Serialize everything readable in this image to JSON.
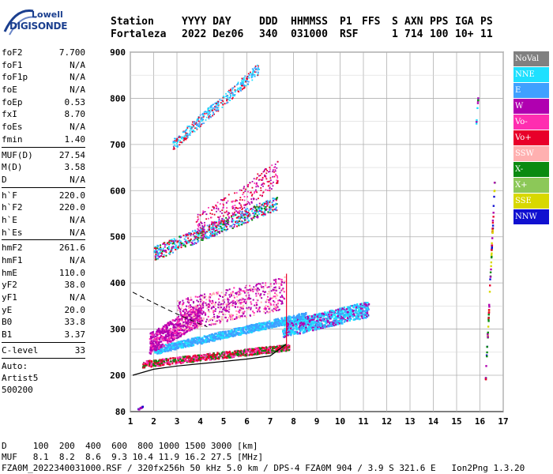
{
  "logo": {
    "line1": "Lowell",
    "line2": "DIGISONDE"
  },
  "header": {
    "labels": [
      "Station",
      "YYYY DAY",
      "DDD",
      "HHMMSS",
      "P1",
      "FFS",
      "S",
      "AXN",
      "PPS",
      "IGA",
      "PS"
    ],
    "values": [
      "Fortaleza",
      "2022 Dez06",
      "340",
      "031000",
      "RSF",
      "",
      "1",
      "714",
      "100",
      "10+",
      "11"
    ]
  },
  "params": {
    "group1": [
      {
        "name": "foF2",
        "value": "7.700"
      },
      {
        "name": "foF1",
        "value": "N/A"
      },
      {
        "name": "foF1p",
        "value": "N/A"
      },
      {
        "name": "foE",
        "value": "N/A"
      },
      {
        "name": "foEp",
        "value": "0.53"
      },
      {
        "name": "fxI",
        "value": "8.70"
      },
      {
        "name": "foEs",
        "value": "N/A"
      },
      {
        "name": "fmin",
        "value": "1.40"
      }
    ],
    "group2": [
      {
        "name": "MUF(D)",
        "value": "27.54"
      },
      {
        "name": "M(D)",
        "value": "3.58"
      },
      {
        "name": "D",
        "value": "N/A"
      }
    ],
    "group3": [
      {
        "name": "h`F",
        "value": "220.0"
      },
      {
        "name": "h`F2",
        "value": "220.0"
      },
      {
        "name": "h`E",
        "value": "N/A"
      },
      {
        "name": "h`Es",
        "value": "N/A"
      }
    ],
    "group4": [
      {
        "name": "hmF2",
        "value": "261.6"
      },
      {
        "name": "hmF1",
        "value": "N/A"
      },
      {
        "name": "hmE",
        "value": "110.0"
      },
      {
        "name": "yF2",
        "value": "38.0"
      },
      {
        "name": "yF1",
        "value": "N/A"
      },
      {
        "name": "yE",
        "value": "20.0"
      },
      {
        "name": "B0",
        "value": "33.8"
      },
      {
        "name": "B1",
        "value": "3.37"
      }
    ],
    "group5": [
      {
        "name": "C-level",
        "value": "33"
      }
    ],
    "auto": [
      "Auto:",
      "Artist5",
      "500200"
    ]
  },
  "axes": {
    "y_ticks": [
      "900",
      "800",
      "700",
      "600",
      "500",
      "400",
      "300",
      "200",
      "80"
    ],
    "x_ticks": [
      "1",
      "2",
      "3",
      "4",
      "5",
      "6",
      "7",
      "8",
      "9",
      "10",
      "11",
      "12",
      "13",
      "14",
      "15",
      "16",
      "17"
    ]
  },
  "legend": [
    {
      "label": "NoVal",
      "color": "#808080"
    },
    {
      "label": "NNE",
      "color": "#1ee0ff"
    },
    {
      "label": "E",
      "color": "#3fa0ff"
    },
    {
      "label": "W",
      "color": "#b000b0"
    },
    {
      "label": "Vo-",
      "color": "#ff2db0"
    },
    {
      "label": "Vo+",
      "color": "#e8002a"
    },
    {
      "label": "SSW",
      "color": "#ffb0b0"
    },
    {
      "label": "X-",
      "color": "#0a8a10"
    },
    {
      "label": "X+",
      "color": "#8cc858"
    },
    {
      "label": "SSE",
      "color": "#d8d800"
    },
    {
      "label": "NNW",
      "color": "#1010d0"
    }
  ],
  "footer": {
    "d_row": "D     100  200  400  600  800 1000 1500 3000 [km]",
    "muf_row": "MUF   8.1  8.2  8.6  9.3 10.4 11.9 16.2 27.5 [MHz]",
    "info_row": "FZA0M_2022340031000.RSF / 320fx256h 50 kHz 5.0 km / DPS-4 FZA0M 904 / 3.9 S 321.6 E   Ion2Png 1.3.20"
  },
  "chart_data": {
    "type": "scatter",
    "x_axis": {
      "label": "",
      "range": [
        1,
        17
      ],
      "ticks": [
        1,
        2,
        3,
        4,
        5,
        6,
        7,
        8,
        9,
        10,
        11,
        12,
        13,
        14,
        15,
        16,
        17
      ]
    },
    "y_axis": {
      "label": "",
      "range": [
        80,
        900
      ],
      "ticks": [
        80,
        200,
        300,
        400,
        500,
        600,
        700,
        800,
        900
      ]
    },
    "grid": true,
    "traces": [
      {
        "name": "E",
        "color": "#3fa0ff",
        "x": [
          2,
          3,
          4,
          5,
          6,
          7,
          8,
          9,
          10,
          11
        ],
        "y": [
          258,
          265,
          270,
          278,
          285,
          298,
          312,
          322,
          330,
          342
        ]
      },
      {
        "name": "NNE",
        "color": "#1ee0ff",
        "x": [
          8,
          9,
          10,
          11
        ],
        "y": [
          335,
          345,
          355,
          362
        ]
      },
      {
        "name": "W",
        "color": "#b000b0",
        "x": [
          2,
          3,
          4,
          5,
          6,
          7
        ],
        "y": [
          300,
          330,
          340,
          350,
          340,
          330
        ]
      },
      {
        "name": "Vo+",
        "color": "#e8002a",
        "x": [
          1.5,
          2,
          3,
          4,
          5,
          6,
          7,
          7.6
        ],
        "y": [
          232,
          234,
          236,
          238,
          242,
          250,
          262,
          275
        ]
      },
      {
        "name": "X-",
        "color": "#0a8a10",
        "x": [
          3,
          4,
          5,
          6,
          7
        ],
        "y": [
          242,
          246,
          250,
          256,
          262
        ]
      }
    ],
    "profile_curve": {
      "x": [
        1.1,
        2,
        3,
        4,
        5,
        6,
        7,
        7.7
      ],
      "y": [
        200,
        213,
        220,
        225,
        230,
        235,
        242,
        268
      ]
    }
  }
}
